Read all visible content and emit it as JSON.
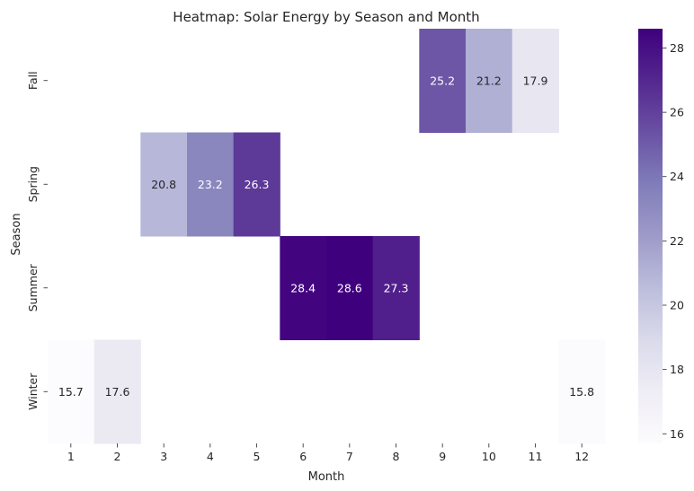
{
  "chart_data": {
    "type": "heatmap",
    "title": "Heatmap: Solar Energy by Season and Month",
    "xlabel": "Month",
    "ylabel": "Season",
    "x_categories": [
      "1",
      "2",
      "3",
      "4",
      "5",
      "6",
      "7",
      "8",
      "9",
      "10",
      "11",
      "12"
    ],
    "y_categories": [
      "Fall",
      "Spring",
      "Summer",
      "Winter"
    ],
    "cells": [
      {
        "season": "Fall",
        "month": "9",
        "value": 25.2
      },
      {
        "season": "Fall",
        "month": "10",
        "value": 21.2
      },
      {
        "season": "Fall",
        "month": "11",
        "value": 17.9
      },
      {
        "season": "Spring",
        "month": "3",
        "value": 20.8
      },
      {
        "season": "Spring",
        "month": "4",
        "value": 23.2
      },
      {
        "season": "Spring",
        "month": "5",
        "value": 26.3
      },
      {
        "season": "Summer",
        "month": "6",
        "value": 28.4
      },
      {
        "season": "Summer",
        "month": "7",
        "value": 28.6
      },
      {
        "season": "Summer",
        "month": "8",
        "value": 27.3
      },
      {
        "season": "Winter",
        "month": "1",
        "value": 15.7
      },
      {
        "season": "Winter",
        "month": "2",
        "value": 17.6
      },
      {
        "season": "Winter",
        "month": "12",
        "value": 15.8
      }
    ],
    "colorbar": {
      "vmin": 15.7,
      "vmax": 28.6,
      "ticks": [
        16,
        18,
        20,
        22,
        24,
        26,
        28
      ],
      "colormap": "Purples",
      "low_color": "#fcfbfd",
      "high_color": "#3f007d"
    },
    "grid": false,
    "legend": "colorbar-right"
  }
}
